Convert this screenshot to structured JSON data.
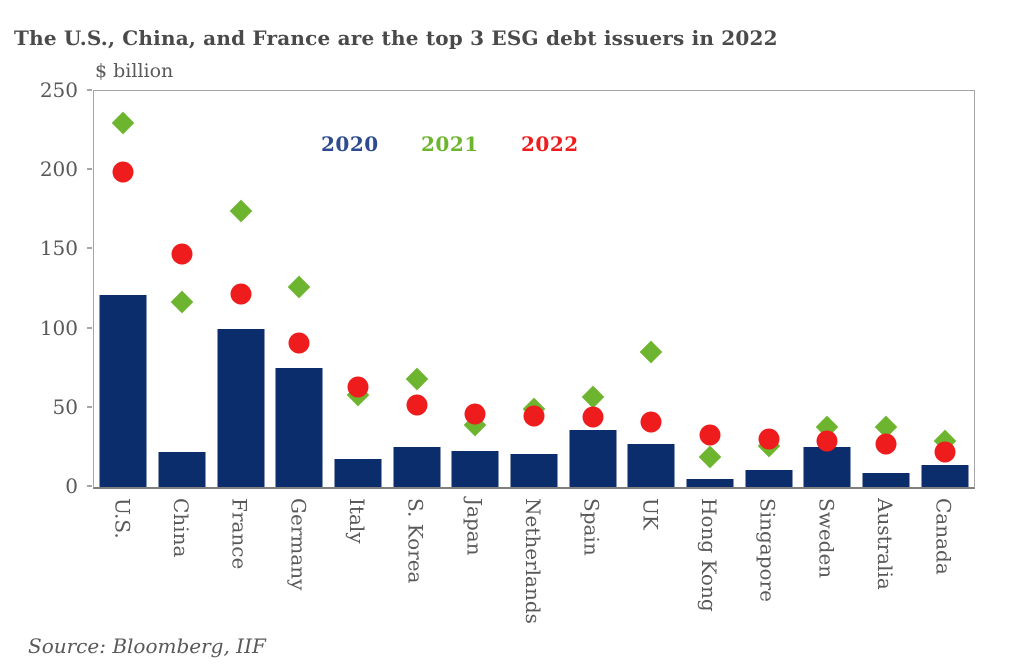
{
  "header": {
    "title": "The U.S., China, and France are the top 3 ESG debt issuers in 2022",
    "unit_label": "$ billion"
  },
  "footer": {
    "source": "Source: Bloomberg, IIF"
  },
  "colors": {
    "bar_navy": "#0b2d6b",
    "diamond_green": "#6eb52f",
    "circle_red": "#ee1c1c",
    "legend_2020_text": "#2e4b8f",
    "legend_2021_text": "#6eb52f",
    "legend_2022_text": "#ee1c1c",
    "title_text": "#4a4a4a",
    "axis_text": "#595959",
    "plot_border": "#a6a6a6"
  },
  "chart_data": {
    "type": "combo",
    "title": "The U.S., China, and France are the top 3 ESG debt issuers in 2022",
    "ylabel": "$ billion",
    "xlabel": "",
    "ylim": [
      0,
      250
    ],
    "yticks": [
      0,
      50,
      100,
      150,
      200,
      250
    ],
    "grid": false,
    "legend_position": "top-inside",
    "categories": [
      "U.S.",
      "China",
      "France",
      "Germany",
      "Italy",
      "S. Korea",
      "Japan",
      "Netherlands",
      "Spain",
      "UK",
      "Hong Kong",
      "Singapore",
      "Sweden",
      "Australia",
      "Canada"
    ],
    "series": [
      {
        "name": "2020",
        "type": "bar",
        "marker": "bar",
        "color": "#0b2d6b",
        "values": [
          121,
          22,
          100,
          75,
          18,
          25,
          23,
          21,
          36,
          27,
          5,
          11,
          25,
          9,
          14
        ]
      },
      {
        "name": "2021",
        "type": "scatter",
        "marker": "diamond",
        "color": "#6eb52f",
        "values": [
          230,
          117,
          174,
          126,
          58,
          68,
          39,
          49,
          57,
          85,
          19,
          26,
          38,
          38,
          29
        ]
      },
      {
        "name": "2022",
        "type": "scatter",
        "marker": "circle",
        "color": "#ee1c1c",
        "values": [
          199,
          147,
          122,
          91,
          63,
          52,
          46,
          45,
          44,
          41,
          33,
          30,
          29,
          27,
          22
        ]
      }
    ],
    "legend_text_colors": [
      "#2e4b8f",
      "#6eb52f",
      "#ee1c1c"
    ]
  }
}
